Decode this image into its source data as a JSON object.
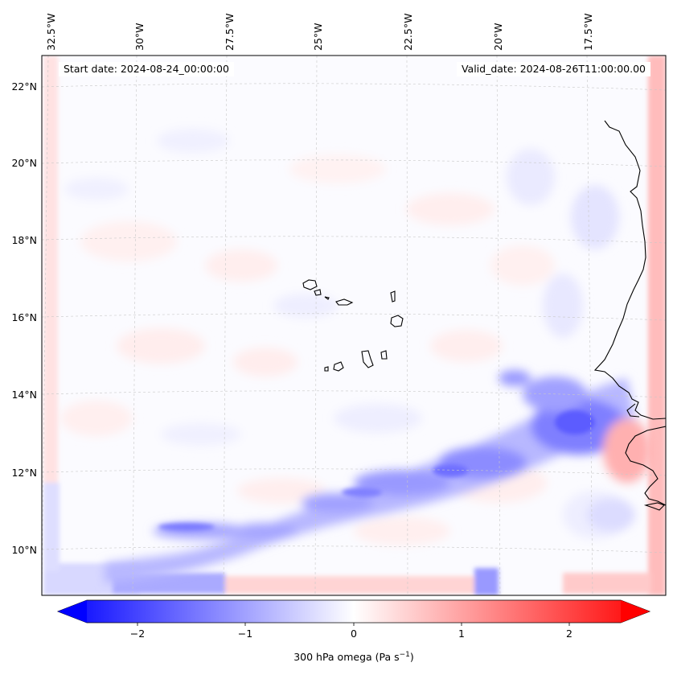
{
  "map": {
    "lon_labels": [
      "32.5°W",
      "30°W",
      "27.5°W",
      "25°W",
      "22.5°W",
      "20°W",
      "17.5°W"
    ],
    "lat_labels": [
      "22°N",
      "20°N",
      "18°N",
      "16°N",
      "14°N",
      "12°N",
      "10°N"
    ],
    "start_date": "Start date: 2024-08-24_00:00:00",
    "valid_date": "Valid_date: 2024-08-26T11:00:00.00"
  },
  "colorbar": {
    "ticks": [
      "−2",
      "−1",
      "0",
      "1",
      "2"
    ],
    "label": "300 hPa omega (Pa s",
    "label_sup": "−1",
    "label_end": ")",
    "min_color": "#0000ff",
    "mid_color": "#ffffff",
    "max_color": "#ff0000"
  }
}
